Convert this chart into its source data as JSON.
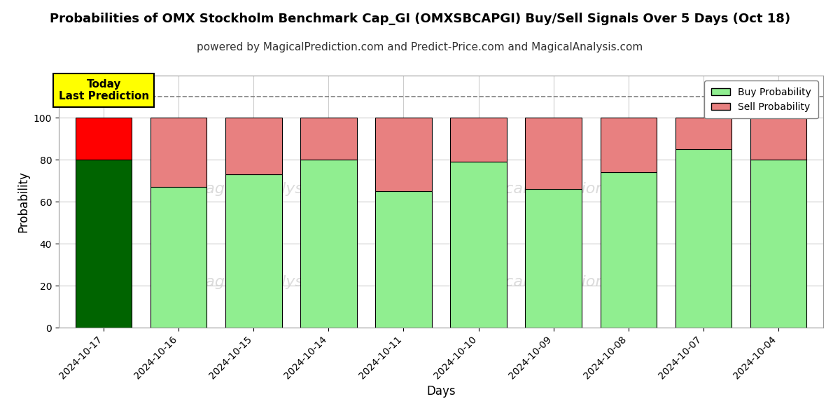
{
  "title": "Probabilities of OMX Stockholm Benchmark Cap_GI (OMXSBCAPGI) Buy/Sell Signals Over 5 Days (Oct 18)",
  "subtitle": "powered by MagicalPrediction.com and Predict-Price.com and MagicalAnalysis.com",
  "xlabel": "Days",
  "ylabel": "Probability",
  "dates": [
    "2024-10-17",
    "2024-10-16",
    "2024-10-15",
    "2024-10-14",
    "2024-10-11",
    "2024-10-10",
    "2024-10-09",
    "2024-10-08",
    "2024-10-07",
    "2024-10-04"
  ],
  "buy_values": [
    80,
    67,
    73,
    80,
    65,
    79,
    66,
    74,
    85,
    80
  ],
  "sell_values": [
    20,
    33,
    27,
    20,
    35,
    21,
    34,
    26,
    15,
    20
  ],
  "buy_colors": [
    "#006400",
    "#90EE90",
    "#90EE90",
    "#90EE90",
    "#90EE90",
    "#90EE90",
    "#90EE90",
    "#90EE90",
    "#90EE90",
    "#90EE90"
  ],
  "sell_colors": [
    "#FF0000",
    "#E88080",
    "#E88080",
    "#E88080",
    "#E88080",
    "#E88080",
    "#E88080",
    "#E88080",
    "#E88080",
    "#E88080"
  ],
  "ylim": [
    0,
    120
  ],
  "yticks": [
    0,
    20,
    40,
    60,
    80,
    100
  ],
  "dashed_line_y": 110,
  "legend_buy_color": "#90EE90",
  "legend_sell_color": "#E88080",
  "today_box_color": "#FFFF00",
  "today_text": "Today\nLast Prediction",
  "background_color": "#ffffff",
  "grid_color": "#cccccc",
  "title_fontsize": 13,
  "subtitle_fontsize": 11,
  "bar_width": 0.75,
  "edgecolor": "black",
  "edgewidth": 0.8
}
